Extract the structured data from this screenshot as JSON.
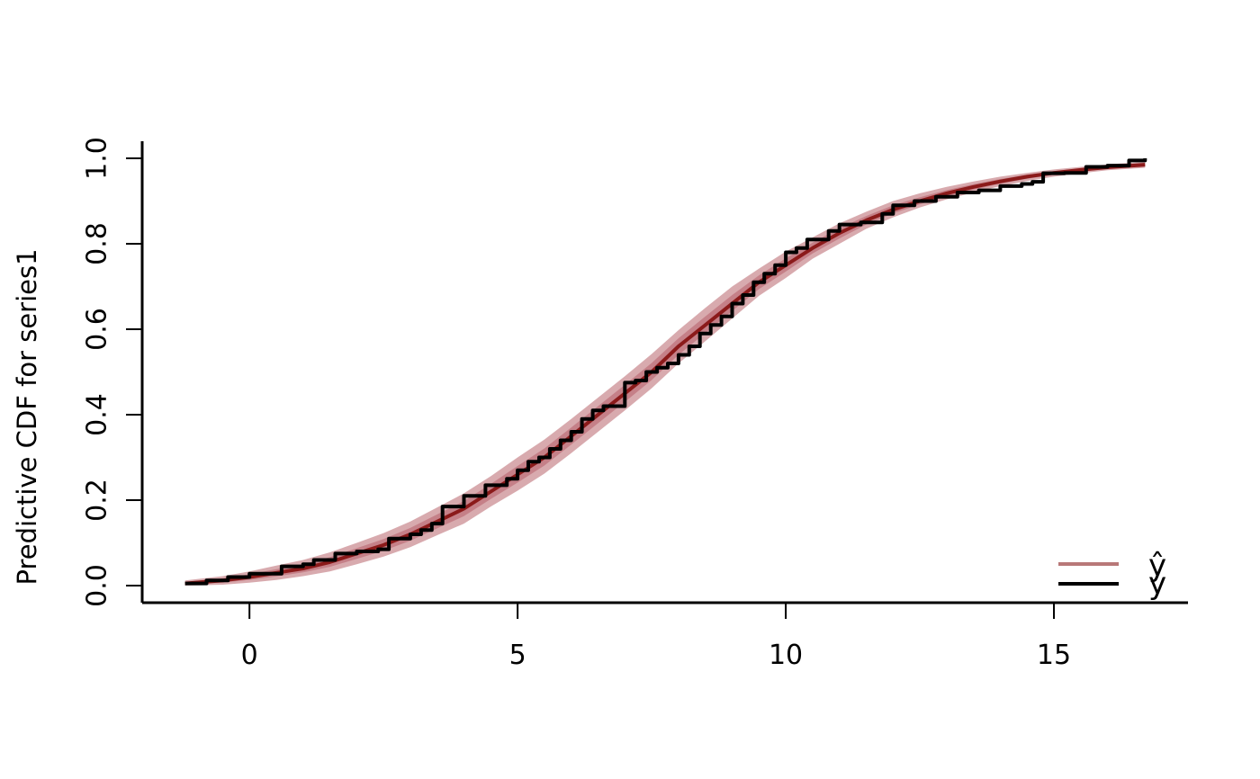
{
  "chart_data": {
    "type": "line",
    "title": "",
    "xlabel": "",
    "ylabel": "Predictive CDF for series1",
    "xlim": [
      -2.0,
      17.5
    ],
    "ylim": [
      -0.04,
      1.04
    ],
    "x_ticks": [
      0,
      5,
      10,
      15
    ],
    "y_ticks": [
      0.0,
      0.2,
      0.4,
      0.6,
      0.8,
      1.0
    ],
    "x_tick_labels": [
      "0",
      "5",
      "10",
      "15"
    ],
    "y_tick_labels": [
      "0.0",
      "0.2",
      "0.4",
      "0.6",
      "0.8",
      "1.0"
    ],
    "grid": false,
    "legend_position": "bottom-right",
    "colors": {
      "band_outer": "#d8aaae",
      "band_inner": "#c58088",
      "median": "#8b1a1a",
      "observed": "#000000",
      "legend_yrep": "#b87878"
    },
    "series": [
      {
        "name": "ŷ",
        "kind": "predictive-band",
        "x": [
          -1.2,
          -0.5,
          0,
          0.5,
          1,
          1.5,
          2,
          2.5,
          3,
          3.5,
          4,
          4.5,
          5,
          5.5,
          6,
          6.5,
          7,
          7.5,
          8,
          8.5,
          9,
          9.5,
          10,
          10.5,
          11,
          11.5,
          12,
          12.5,
          13,
          13.5,
          14,
          14.5,
          15,
          15.5,
          16,
          16.7
        ],
        "median": [
          0.005,
          0.012,
          0.02,
          0.03,
          0.04,
          0.055,
          0.075,
          0.095,
          0.12,
          0.15,
          0.18,
          0.22,
          0.26,
          0.3,
          0.35,
          0.4,
          0.45,
          0.5,
          0.56,
          0.61,
          0.66,
          0.71,
          0.75,
          0.79,
          0.825,
          0.855,
          0.88,
          0.9,
          0.918,
          0.933,
          0.946,
          0.957,
          0.966,
          0.973,
          0.979,
          0.985
        ],
        "lower": [
          0.0,
          0.002,
          0.007,
          0.013,
          0.022,
          0.033,
          0.05,
          0.068,
          0.09,
          0.118,
          0.145,
          0.185,
          0.222,
          0.262,
          0.31,
          0.36,
          0.41,
          0.462,
          0.52,
          0.572,
          0.625,
          0.678,
          0.72,
          0.765,
          0.8,
          0.835,
          0.862,
          0.885,
          0.904,
          0.92,
          0.935,
          0.947,
          0.957,
          0.965,
          0.972,
          0.978
        ],
        "upper": [
          0.012,
          0.022,
          0.033,
          0.047,
          0.06,
          0.078,
          0.1,
          0.123,
          0.15,
          0.183,
          0.216,
          0.256,
          0.3,
          0.342,
          0.39,
          0.44,
          0.49,
          0.542,
          0.598,
          0.65,
          0.7,
          0.742,
          0.782,
          0.815,
          0.848,
          0.875,
          0.9,
          0.918,
          0.933,
          0.946,
          0.957,
          0.966,
          0.974,
          0.98,
          0.986,
          0.992
        ]
      },
      {
        "name": "y",
        "kind": "observed",
        "x": [
          -1.2,
          -0.8,
          -0.4,
          0,
          0.4,
          0.6,
          1,
          1.2,
          1.6,
          2,
          2.4,
          2.6,
          3,
          3.2,
          3.4,
          3.6,
          4,
          4.4,
          4.8,
          5,
          5.2,
          5.4,
          5.6,
          5.8,
          6,
          6.2,
          6.4,
          6.6,
          7,
          7.2,
          7.4,
          7.6,
          7.8,
          8,
          8.2,
          8.4,
          8.6,
          8.8,
          9,
          9.2,
          9.4,
          9.6,
          9.8,
          10,
          10.2,
          10.4,
          10.8,
          11,
          11.4,
          11.8,
          12,
          12.4,
          12.8,
          13.2,
          13.6,
          14,
          14.4,
          14.6,
          14.8,
          15.2,
          15.6,
          16,
          16.4,
          16.7
        ],
        "values": [
          0.005,
          0.012,
          0.02,
          0.028,
          0.028,
          0.045,
          0.05,
          0.06,
          0.075,
          0.08,
          0.085,
          0.11,
          0.12,
          0.13,
          0.145,
          0.185,
          0.21,
          0.235,
          0.25,
          0.27,
          0.29,
          0.3,
          0.32,
          0.34,
          0.36,
          0.39,
          0.41,
          0.42,
          0.475,
          0.48,
          0.5,
          0.51,
          0.52,
          0.54,
          0.56,
          0.59,
          0.61,
          0.63,
          0.66,
          0.68,
          0.71,
          0.73,
          0.75,
          0.78,
          0.79,
          0.81,
          0.83,
          0.845,
          0.85,
          0.87,
          0.89,
          0.9,
          0.91,
          0.92,
          0.925,
          0.935,
          0.94,
          0.945,
          0.965,
          0.966,
          0.98,
          0.983,
          0.995,
          1.0
        ]
      }
    ]
  }
}
